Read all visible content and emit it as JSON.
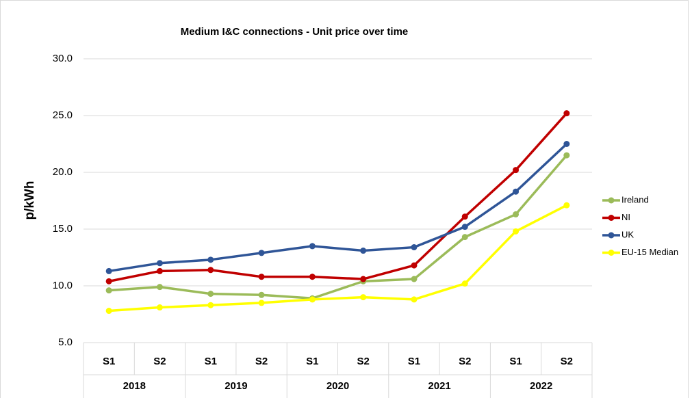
{
  "chart_data": {
    "type": "line",
    "title": "Medium I&C connections - Unit price over time",
    "y_label": "p/kWh",
    "categories": [
      "S1",
      "S2",
      "S1",
      "S2",
      "S1",
      "S2",
      "S1",
      "S2",
      "S1",
      "S2"
    ],
    "category_groups": [
      "2018",
      "2019",
      "2020",
      "2021",
      "2022"
    ],
    "series": [
      {
        "name": "Ireland",
        "color": "#9bbb59",
        "values": [
          9.6,
          9.9,
          9.3,
          9.2,
          8.9,
          10.4,
          10.6,
          14.3,
          16.3,
          21.5
        ]
      },
      {
        "name": "NI",
        "color": "#c00000",
        "values": [
          10.4,
          11.3,
          11.4,
          10.8,
          10.8,
          10.6,
          11.8,
          16.1,
          20.2,
          25.2
        ]
      },
      {
        "name": "UK",
        "color": "#2f5597",
        "values": [
          11.3,
          12.0,
          12.3,
          12.9,
          13.5,
          13.1,
          13.4,
          15.2,
          18.3,
          22.5
        ]
      },
      {
        "name": "EU-15 Median",
        "color": "#ffff00",
        "values": [
          7.8,
          8.1,
          8.3,
          8.5,
          8.8,
          9.0,
          8.8,
          10.2,
          14.8,
          17.1
        ]
      }
    ],
    "ylim": [
      5,
      30
    ],
    "yticks": [
      {
        "value": 5,
        "label": "5.0"
      },
      {
        "value": 10,
        "label": "10.0"
      },
      {
        "value": 15,
        "label": "15.0"
      },
      {
        "value": 20,
        "label": "20.0"
      },
      {
        "value": 25,
        "label": "25.0"
      },
      {
        "value": 30,
        "label": "30.0"
      }
    ],
    "grid": true,
    "legend": "right"
  }
}
